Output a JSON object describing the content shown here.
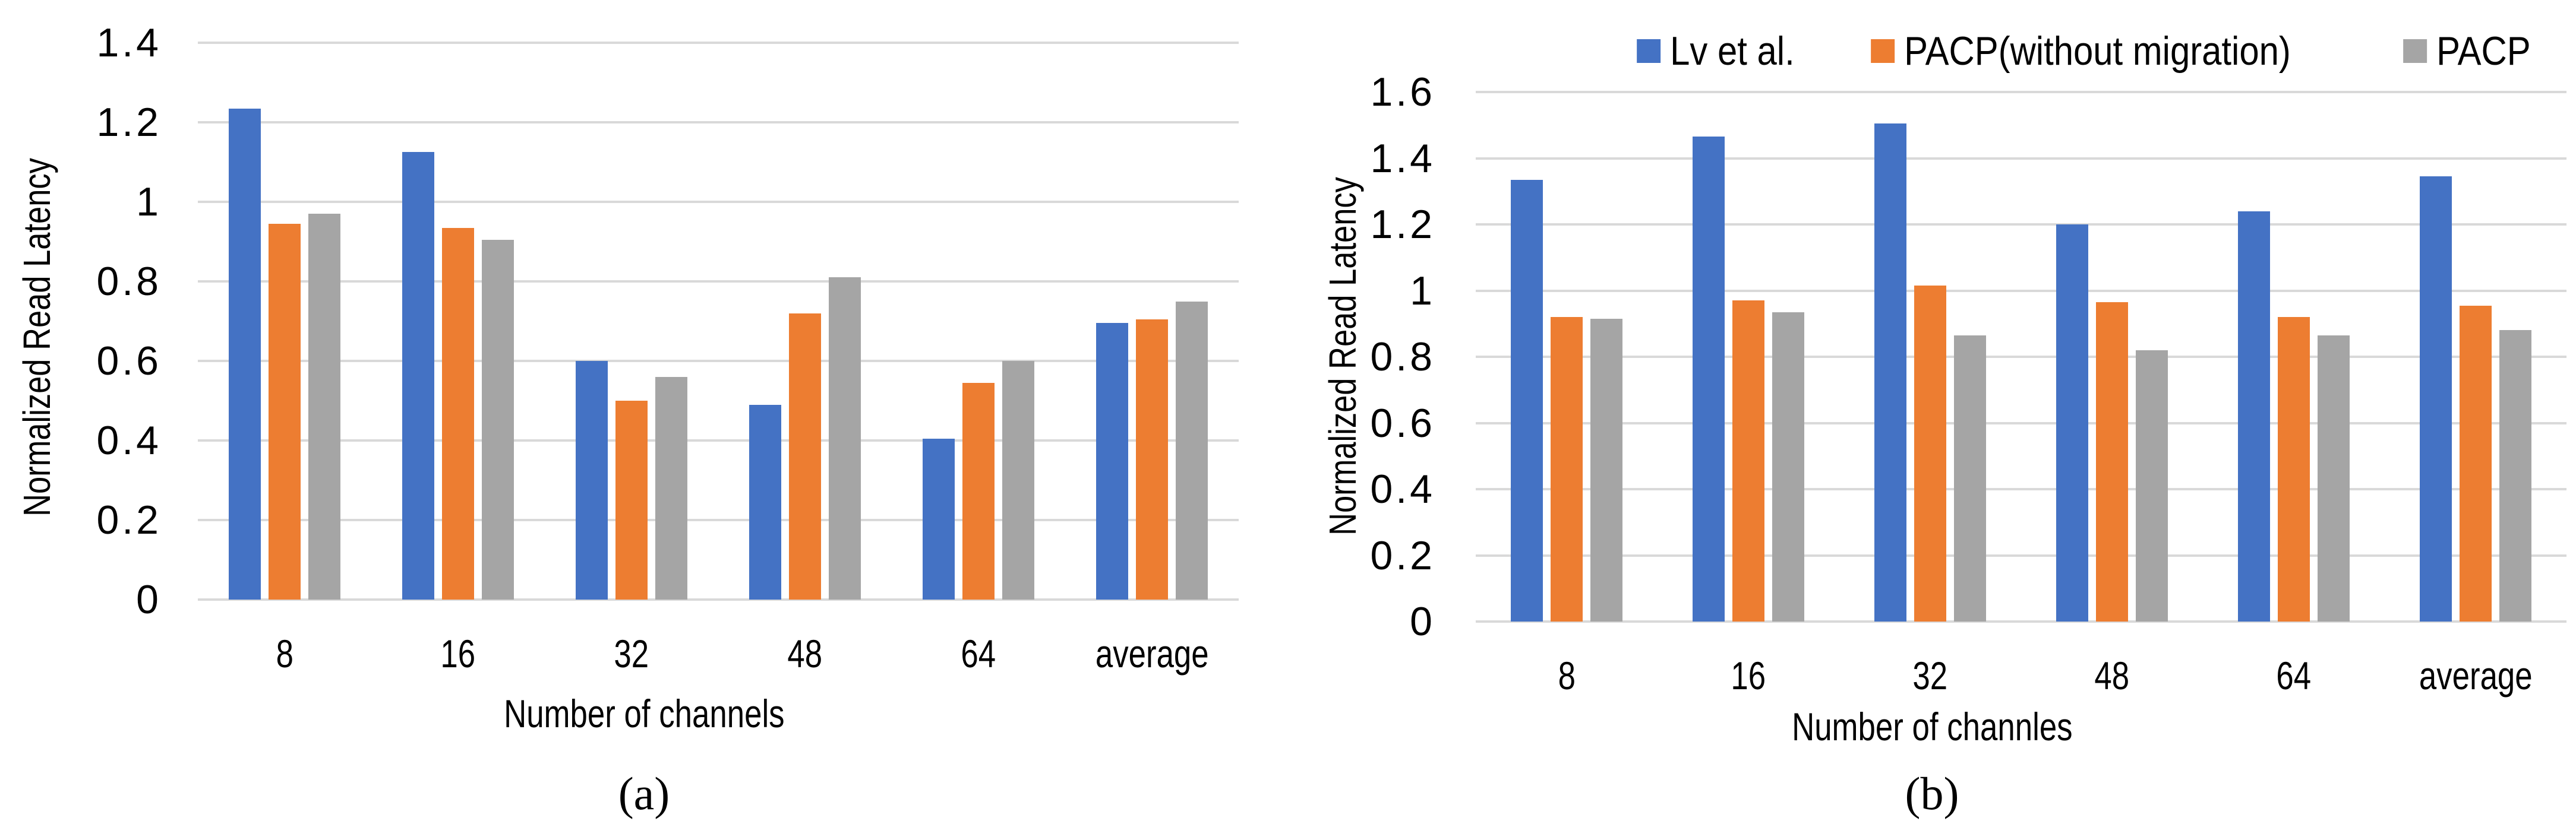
{
  "legend": {
    "items": [
      {
        "label": "Lv et al.",
        "color": "#4472C4"
      },
      {
        "label": "PACP(without migration)",
        "color": "#ED7D31"
      },
      {
        "label": "PACP",
        "color": "#A5A5A5"
      }
    ]
  },
  "colors": {
    "series_blue": "#4472C4",
    "series_orange": "#ED7D31",
    "series_gray": "#A5A5A5",
    "gridline": "#D9D9D9",
    "text": "#000000",
    "background": "#FFFFFF"
  },
  "chart_data": [
    {
      "type": "bar",
      "panel_caption": "(a)",
      "title": "",
      "categories": [
        "8",
        "16",
        "32",
        "48",
        "64",
        "average"
      ],
      "series": [
        {
          "name": "Lv et al.",
          "color": "#4472C4",
          "values": [
            1.235,
            1.125,
            0.6,
            0.49,
            0.405,
            0.695
          ]
        },
        {
          "name": "PACP(without migration)",
          "color": "#ED7D31",
          "values": [
            0.945,
            0.935,
            0.5,
            0.72,
            0.545,
            0.705
          ]
        },
        {
          "name": "PACP",
          "color": "#A5A5A5",
          "values": [
            0.97,
            0.905,
            0.56,
            0.81,
            0.6,
            0.75
          ]
        }
      ],
      "xlabel": "Number of channels",
      "ylabel": "Normalized Read Latency",
      "ylim": [
        0,
        1.4
      ],
      "ytick_step": 0.2,
      "ytick_labels": [
        "0",
        "0.2",
        "0.4",
        "0.6",
        "0.8",
        "1",
        "1.2",
        "1.4"
      ],
      "grid": true,
      "legend_position": "none"
    },
    {
      "type": "bar",
      "panel_caption": "(b)",
      "title": "",
      "categories": [
        "8",
        "16",
        "32",
        "48",
        "64",
        "average"
      ],
      "series": [
        {
          "name": "Lv et al.",
          "color": "#4472C4",
          "values": [
            1.335,
            1.465,
            1.505,
            1.2,
            1.24,
            1.345
          ]
        },
        {
          "name": "PACP(without migration)",
          "color": "#ED7D31",
          "values": [
            0.92,
            0.97,
            1.015,
            0.965,
            0.92,
            0.955
          ]
        },
        {
          "name": "PACP",
          "color": "#A5A5A5",
          "values": [
            0.915,
            0.935,
            0.865,
            0.82,
            0.865,
            0.88
          ]
        }
      ],
      "xlabel": "Number of channles",
      "ylabel": "Normalized Read Latency",
      "ylim": [
        0,
        1.6
      ],
      "ytick_step": 0.2,
      "ytick_labels": [
        "0",
        "0.2",
        "0.4",
        "0.6",
        "0.8",
        "1",
        "1.2",
        "1.4",
        "1.6"
      ],
      "grid": true,
      "legend_position": "top"
    }
  ]
}
